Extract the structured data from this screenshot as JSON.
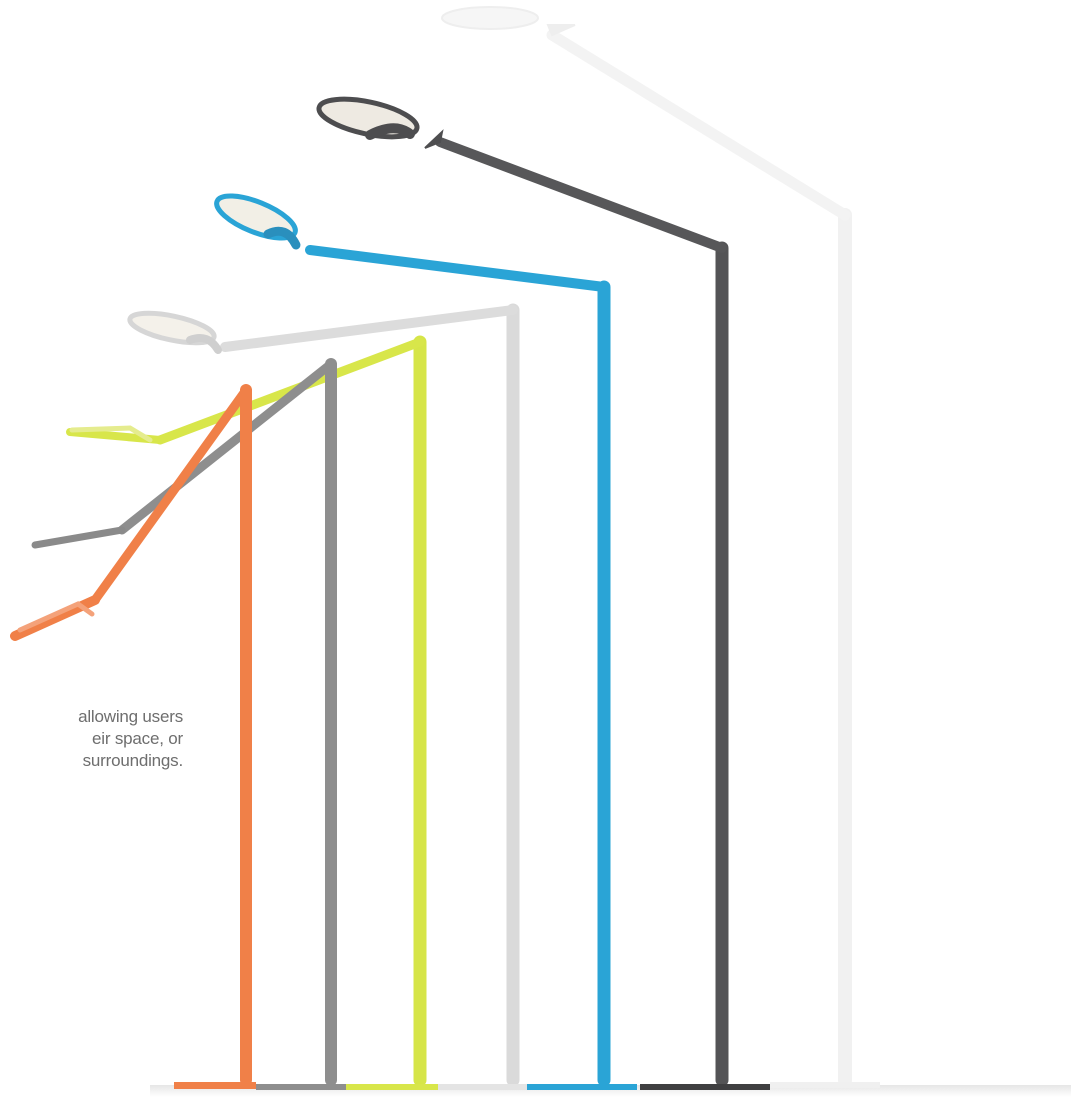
{
  "caption": {
    "line1": "allowing users",
    "line2": "eir space, or",
    "line3": "surroundings."
  },
  "lamps": [
    {
      "name": "white",
      "color": "#f4f4f4"
    },
    {
      "name": "dark-grey",
      "color": "#5a5a5c"
    },
    {
      "name": "blue",
      "color": "#2aa4d6"
    },
    {
      "name": "light-grey",
      "color": "#dddddd"
    },
    {
      "name": "lime",
      "color": "#d8e64a"
    },
    {
      "name": "grey",
      "color": "#8e8e8e"
    },
    {
      "name": "orange",
      "color": "#f08048"
    }
  ]
}
